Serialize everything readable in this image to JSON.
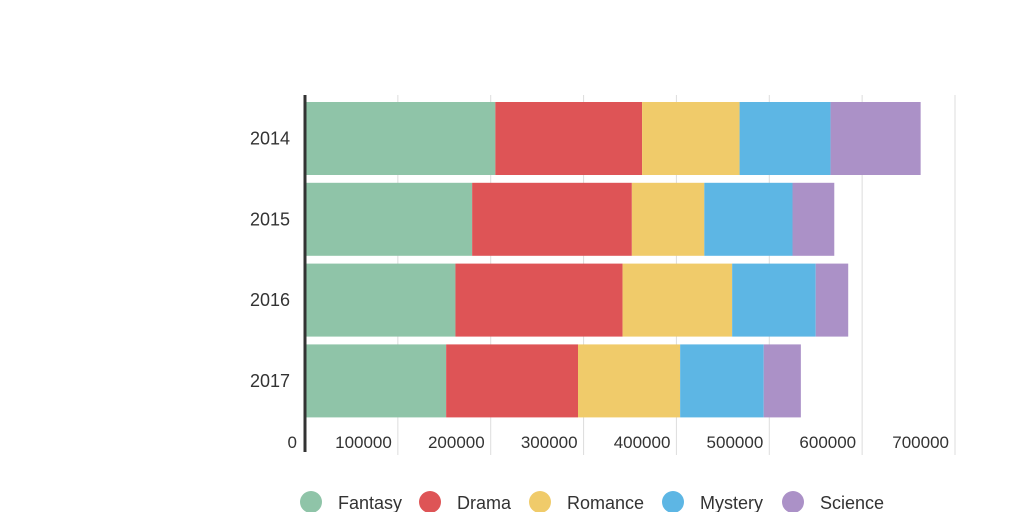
{
  "chart_data": {
    "type": "bar",
    "orientation": "horizontal",
    "stacked": true,
    "categories": [
      "2014",
      "2015",
      "2016",
      "2017"
    ],
    "series": [
      {
        "name": "Fantasy",
        "color": "#8fc4a8",
        "values": [
          205000,
          180000,
          162000,
          152000
        ]
      },
      {
        "name": "Drama",
        "color": "#de5456",
        "values": [
          158000,
          172000,
          180000,
          142000
        ]
      },
      {
        "name": "Romance",
        "color": "#f0cb6a",
        "values": [
          105000,
          78000,
          118000,
          110000
        ]
      },
      {
        "name": "Mystery",
        "color": "#5db6e4",
        "values": [
          98000,
          95000,
          90000,
          90000
        ]
      },
      {
        "name": "Science",
        "color": "#ab91c7",
        "values": [
          97000,
          45000,
          35000,
          40000
        ]
      }
    ],
    "xlim": [
      0,
      700000
    ],
    "xticks": [
      0,
      100000,
      200000,
      300000,
      400000,
      500000,
      600000,
      700000
    ],
    "xtick_labels": [
      "0",
      "100000",
      "200000",
      "300000",
      "400000",
      "500000",
      "600000",
      "700000"
    ],
    "grid": true,
    "legend_position": "bottom"
  }
}
